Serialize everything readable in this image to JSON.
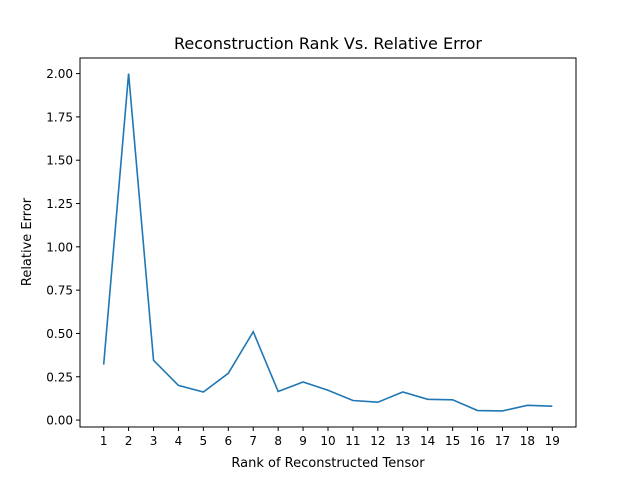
{
  "chart_data": {
    "type": "line",
    "title": "Reconstruction Rank Vs. Relative Error",
    "xlabel": "Rank of Reconstructed Tensor",
    "ylabel": "Relative Error",
    "x": [
      1,
      2,
      3,
      4,
      5,
      6,
      7,
      8,
      9,
      10,
      11,
      12,
      13,
      14,
      15,
      16,
      17,
      18,
      19
    ],
    "y": [
      0.32,
      2.0,
      0.345,
      0.2,
      0.162,
      0.27,
      0.51,
      0.165,
      0.22,
      0.172,
      0.113,
      0.103,
      0.162,
      0.12,
      0.117,
      0.055,
      0.053,
      0.085,
      0.08
    ],
    "xlim": [
      0.05,
      19.95
    ],
    "ylim": [
      -0.04,
      2.09
    ],
    "xticks": [
      "1",
      "2",
      "3",
      "4",
      "5",
      "6",
      "7",
      "8",
      "9",
      "10",
      "11",
      "12",
      "13",
      "14",
      "15",
      "16",
      "17",
      "18",
      "19"
    ],
    "yticks": [
      "0.00",
      "0.25",
      "0.50",
      "0.75",
      "1.00",
      "1.25",
      "1.50",
      "1.75",
      "2.00"
    ],
    "line_color": "#1f77b4",
    "grid": false,
    "legend": false
  }
}
